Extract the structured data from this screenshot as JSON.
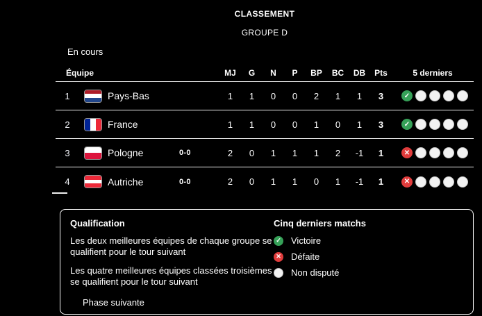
{
  "header": {
    "title": "CLASSEMENT",
    "subtitle": "GROUPE D",
    "status": "En cours"
  },
  "table": {
    "team_header": "Équipe",
    "stat_columns": [
      "MJ",
      "G",
      "N",
      "P",
      "BP",
      "BC",
      "DB",
      "Pts"
    ],
    "last5_header": "5 derniers",
    "rows": [
      {
        "rank": "1",
        "team": "Pays-Bas",
        "flag": "netherlands",
        "live_score": "",
        "stats": [
          "1",
          "1",
          "0",
          "0",
          "2",
          "1",
          "1"
        ],
        "pts": "3",
        "last5": [
          "win",
          "none",
          "none",
          "none",
          "none"
        ]
      },
      {
        "rank": "2",
        "team": "France",
        "flag": "france",
        "live_score": "",
        "stats": [
          "1",
          "1",
          "0",
          "0",
          "1",
          "0",
          "1"
        ],
        "pts": "3",
        "last5": [
          "win",
          "none",
          "none",
          "none",
          "none"
        ]
      },
      {
        "rank": "3",
        "team": "Pologne",
        "flag": "poland",
        "live_score": "0-0",
        "stats": [
          "2",
          "0",
          "1",
          "1",
          "1",
          "2",
          "-1"
        ],
        "pts": "1",
        "last5": [
          "loss",
          "none",
          "none",
          "none",
          "none"
        ]
      },
      {
        "rank": "4",
        "team": "Autriche",
        "flag": "austria",
        "live_score": "0-0",
        "stats": [
          "2",
          "0",
          "1",
          "1",
          "0",
          "1",
          "-1"
        ],
        "pts": "1",
        "last5": [
          "loss",
          "none",
          "none",
          "none",
          "none"
        ]
      }
    ]
  },
  "flags": {
    "netherlands": {
      "orientation": "horizontal",
      "stripes": [
        "#AE1C28",
        "#FFFFFF",
        "#21468B"
      ]
    },
    "france": {
      "orientation": "vertical",
      "stripes": [
        "#002395",
        "#FFFFFF",
        "#ED2939"
      ]
    },
    "poland": {
      "orientation": "horizontal",
      "stripes": [
        "#FFFFFF",
        "#DC143C"
      ]
    },
    "austria": {
      "orientation": "horizontal",
      "stripes": [
        "#ED2939",
        "#FFFFFF",
        "#ED2939"
      ]
    }
  },
  "legend": {
    "qualification_title": "Qualification",
    "rules": [
      "Les deux meilleures équipes de chaque groupe se qualifient pour le tour suivant",
      "Les quatre meilleures équipes classées troisièmes se qualifient pour le tour suivant"
    ],
    "phase_label": "Phase suivante",
    "last5_title": "Cinq derniers matchs",
    "items": [
      {
        "icon": "win",
        "label": "Victoire"
      },
      {
        "icon": "loss",
        "label": "Défaite"
      },
      {
        "icon": "none",
        "label": "Non disputé"
      }
    ]
  },
  "colors": {
    "win": "#36A158",
    "loss": "#E03C3C",
    "none": "#F2F2F2",
    "background": "#000000",
    "text": "#FFFFFF"
  },
  "icons": {
    "win": "check-circle-icon",
    "loss": "cross-circle-icon",
    "none": "empty-circle-icon"
  }
}
